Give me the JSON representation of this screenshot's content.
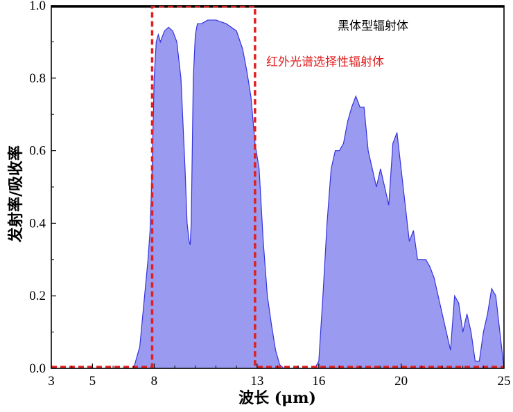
{
  "chart_data": {
    "type": "area",
    "xlabel": "波长 (μm)",
    "ylabel": "发射率/吸收率",
    "xlim": [
      3,
      25
    ],
    "ylim": [
      0,
      1.0
    ],
    "x_ticks": [
      3,
      5,
      8,
      13,
      16,
      20,
      25
    ],
    "y_ticks": [
      0.0,
      0.2,
      0.4,
      0.6,
      0.8,
      1.0
    ],
    "y_tick_labels": [
      "0.0",
      "0.2",
      "0.4",
      "0.6",
      "0.8",
      "1.0"
    ],
    "annotations": {
      "blackbody": "黑体型辐射体",
      "selective": "红外光谱选择性辐射体"
    },
    "colors": {
      "blackbody": "#000000",
      "emission_line": "#3333dd",
      "emission_fill": "#9a9af0",
      "selective": "#e02020"
    },
    "series": [
      {
        "name": "黑体型辐射体",
        "x": [
          3,
          25
        ],
        "y": [
          1.0,
          1.0
        ]
      },
      {
        "x": [
          3,
          7.0,
          7.3,
          7.5,
          7.7,
          7.8,
          7.9,
          8.0,
          8.1,
          8.2,
          8.3,
          8.5,
          8.7,
          8.9,
          9.1,
          9.3,
          9.5,
          9.6,
          9.7,
          9.75,
          9.8,
          9.85,
          9.9,
          10.0,
          10.1,
          10.3,
          10.6,
          11.0,
          11.5,
          12.0,
          12.3,
          12.5,
          12.7,
          12.9,
          13.1,
          13.3,
          13.5,
          13.7,
          13.9,
          14.1,
          14.3,
          14.6,
          15.0,
          15.5,
          15.8,
          16.0,
          16.2,
          16.4,
          16.6,
          16.8,
          17.0,
          17.2,
          17.4,
          17.6,
          17.8,
          18.0,
          18.2,
          18.4,
          18.6,
          18.8,
          19.0,
          19.2,
          19.4,
          19.6,
          19.8,
          20.0,
          20.2,
          20.4,
          20.6,
          20.8,
          21.0,
          21.2,
          21.4,
          21.6,
          21.8,
          22.0,
          22.2,
          22.4,
          22.6,
          22.8,
          23.0,
          23.2,
          23.4,
          23.6,
          23.8,
          24.0,
          24.2,
          24.4,
          24.6,
          24.8,
          25.0
        ],
        "y": [
          0,
          0,
          0.06,
          0.18,
          0.3,
          0.38,
          0.55,
          0.8,
          0.9,
          0.92,
          0.9,
          0.93,
          0.94,
          0.93,
          0.9,
          0.8,
          0.55,
          0.4,
          0.35,
          0.34,
          0.4,
          0.6,
          0.8,
          0.92,
          0.95,
          0.95,
          0.96,
          0.96,
          0.95,
          0.93,
          0.88,
          0.82,
          0.75,
          0.62,
          0.55,
          0.35,
          0.2,
          0.12,
          0.05,
          0.01,
          0,
          0,
          0,
          0,
          0,
          0.02,
          0.2,
          0.4,
          0.55,
          0.6,
          0.6,
          0.62,
          0.68,
          0.72,
          0.75,
          0.72,
          0.72,
          0.6,
          0.55,
          0.5,
          0.55,
          0.5,
          0.45,
          0.62,
          0.65,
          0.55,
          0.45,
          0.35,
          0.38,
          0.3,
          0.3,
          0.3,
          0.28,
          0.25,
          0.2,
          0.15,
          0.1,
          0.05,
          0.2,
          0.18,
          0.1,
          0.15,
          0.1,
          0.02,
          0.02,
          0.1,
          0.15,
          0.22,
          0.2,
          0.1,
          0
        ]
      },
      {
        "name": "红外光谱选择性辐射体",
        "x": [
          3,
          7.9,
          7.9,
          12.9,
          12.9,
          25
        ],
        "y": [
          0,
          0,
          1.0,
          1.0,
          0,
          0
        ]
      }
    ]
  }
}
